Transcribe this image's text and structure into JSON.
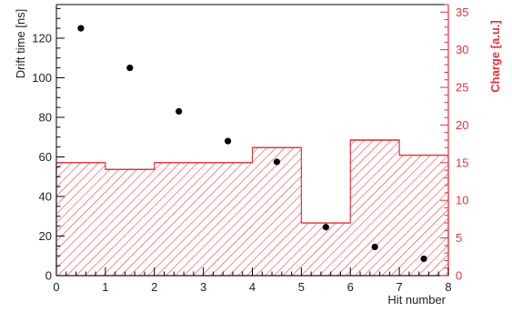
{
  "chart_data": {
    "type": "bar+scatter",
    "title": "",
    "xlabel": "Hit number",
    "ylabel": "Drift time [ns]",
    "y2label": "Charge [a.u.]",
    "xlim": [
      0,
      8
    ],
    "ylim": [
      0,
      137
    ],
    "y2lim": [
      0,
      36
    ],
    "xticks": [
      0,
      1,
      2,
      3,
      4,
      5,
      6,
      7,
      8
    ],
    "yticks": [
      0,
      20,
      40,
      60,
      80,
      100,
      120
    ],
    "y2ticks": [
      0,
      5,
      10,
      15,
      20,
      25,
      30,
      35
    ],
    "series": [
      {
        "kind": "scatter",
        "axis": "left",
        "color": "#000000",
        "x": [
          0.5,
          1.5,
          2.5,
          3.5,
          4.5,
          5.5,
          6.5,
          7.5
        ],
        "y": [
          125,
          105,
          83,
          68,
          57.5,
          24.5,
          14.5,
          8.5
        ]
      },
      {
        "kind": "histogram",
        "axis": "right",
        "color": "#e8333a",
        "bin_edges": [
          0,
          1,
          2,
          3,
          4,
          5,
          6,
          7,
          8
        ],
        "values": [
          15,
          14.1,
          15,
          15,
          17,
          7,
          18,
          16
        ]
      }
    ]
  },
  "colors": {
    "left_axis": "#000000",
    "right_axis": "#e8333a",
    "hatch": "#e8333a"
  }
}
